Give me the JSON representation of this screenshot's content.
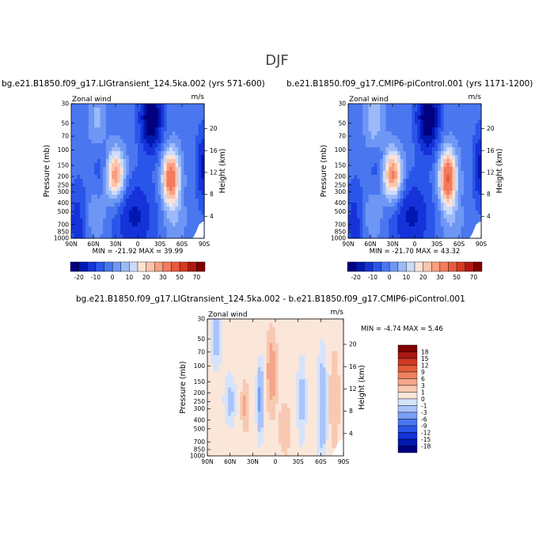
{
  "page": {
    "title": "DJF"
  },
  "chart_data": [
    {
      "type": "heatmap",
      "title": "bg.e21.B1850.f09_g17.LIGtransient_124.5ka.002 (yrs 571-600)",
      "subtitle": "Zonal wind",
      "units": "m/s",
      "xlabel": "",
      "ylabel": "Pressure (mb)",
      "y2label": "Height (km)",
      "x_ticks": [
        "90N",
        "60N",
        "30N",
        "0",
        "30S",
        "60S",
        "90S"
      ],
      "y_ticks": [
        "30",
        "50",
        "70",
        "100",
        "150",
        "200",
        "250",
        "300",
        "400",
        "500",
        "700",
        "850",
        "1000"
      ],
      "y2_ticks": [
        "4",
        "8",
        "12",
        "16",
        "20"
      ],
      "stats": "MIN = -21.92 MAX = 39.99",
      "min": -21.92,
      "max": 39.99,
      "colorbar": {
        "orientation": "horizontal",
        "levels": [
          -25,
          -20,
          -15,
          -10,
          -5,
          0,
          5,
          10,
          15,
          20,
          25,
          30,
          40,
          50,
          60,
          70,
          80
        ],
        "labels": [
          "-20",
          "-10",
          "0",
          "10",
          "20",
          "30",
          "50",
          "70"
        ]
      },
      "features": [
        {
          "lat": 50,
          "p": 40,
          "value": 8
        },
        {
          "lat": 30,
          "p": 200,
          "value": 30
        },
        {
          "lat": -45,
          "p": 200,
          "value": 38
        },
        {
          "lat": -18,
          "p": 38,
          "value": -22
        },
        {
          "lat": 5,
          "p": 450,
          "value": -10
        },
        {
          "lat": -85,
          "p": 100,
          "value": -12
        }
      ]
    },
    {
      "type": "heatmap",
      "title": "b.e21.B1850.f09_g17.CMIP6-piControl.001 (yrs 1171-1200)",
      "subtitle": "Zonal wind",
      "units": "m/s",
      "xlabel": "",
      "ylabel": "Pressure (mb)",
      "y2label": "Height (km)",
      "x_ticks": [
        "90N",
        "60N",
        "30N",
        "0",
        "30S",
        "60S",
        "90S"
      ],
      "y_ticks": [
        "30",
        "50",
        "70",
        "100",
        "150",
        "200",
        "250",
        "300",
        "400",
        "500",
        "700",
        "850",
        "1000"
      ],
      "y2_ticks": [
        "4",
        "8",
        "12",
        "16",
        "20"
      ],
      "stats": "MIN = -21.70 MAX = 43.32",
      "min": -21.7,
      "max": 43.32,
      "colorbar": {
        "orientation": "horizontal",
        "levels": [
          -25,
          -20,
          -15,
          -10,
          -5,
          0,
          5,
          10,
          15,
          20,
          25,
          30,
          40,
          50,
          60,
          70,
          80
        ],
        "labels": [
          "-20",
          "-10",
          "0",
          "10",
          "20",
          "30",
          "50",
          "70"
        ]
      },
      "features": [
        {
          "lat": 55,
          "p": 40,
          "value": 12
        },
        {
          "lat": 30,
          "p": 200,
          "value": 33
        },
        {
          "lat": -45,
          "p": 200,
          "value": 40
        },
        {
          "lat": -18,
          "p": 35,
          "value": -22
        },
        {
          "lat": 5,
          "p": 450,
          "value": -10
        },
        {
          "lat": -85,
          "p": 100,
          "value": -12
        }
      ]
    },
    {
      "type": "heatmap",
      "title": "bg.e21.B1850.f09_g17.LIGtransient_124.5ka.002 - b.e21.B1850.f09_g17.CMIP6-piControl.001",
      "subtitle": "Zonal wind",
      "units": "m/s",
      "xlabel": "",
      "ylabel": "Pressure (mb)",
      "y2label": "Height (km)",
      "x_ticks": [
        "90N",
        "60N",
        "30N",
        "0",
        "30S",
        "60S",
        "90S"
      ],
      "y_ticks": [
        "30",
        "50",
        "70",
        "100",
        "150",
        "200",
        "250",
        "300",
        "400",
        "500",
        "700",
        "850",
        "1000"
      ],
      "y2_ticks": [
        "4",
        "8",
        "12",
        "16",
        "20"
      ],
      "stats": "MIN = -4.74 MAX = 5.46",
      "min": -4.74,
      "max": 5.46,
      "colorbar": {
        "orientation": "vertical",
        "levels": [
          -21,
          -18,
          -15,
          -12,
          -9,
          -6,
          -3,
          -1,
          0,
          1,
          3,
          6,
          9,
          12,
          15,
          18,
          21
        ],
        "labels": [
          "18",
          "15",
          "12",
          "9",
          "6",
          "3",
          "1",
          "0",
          "-1",
          "-3",
          "-6",
          "-9",
          "-12",
          "-15",
          "-18"
        ]
      },
      "features": [
        {
          "lat": 5,
          "p": 120,
          "value": 5.5
        },
        {
          "lat": 40,
          "p": 300,
          "value": 3
        },
        {
          "lat": 20,
          "p": 300,
          "value": -4.7
        },
        {
          "lat": 60,
          "p": 200,
          "value": -2
        },
        {
          "lat": -35,
          "p": 250,
          "value": -2
        },
        {
          "lat": -60,
          "p": 300,
          "value": -3
        }
      ]
    }
  ]
}
